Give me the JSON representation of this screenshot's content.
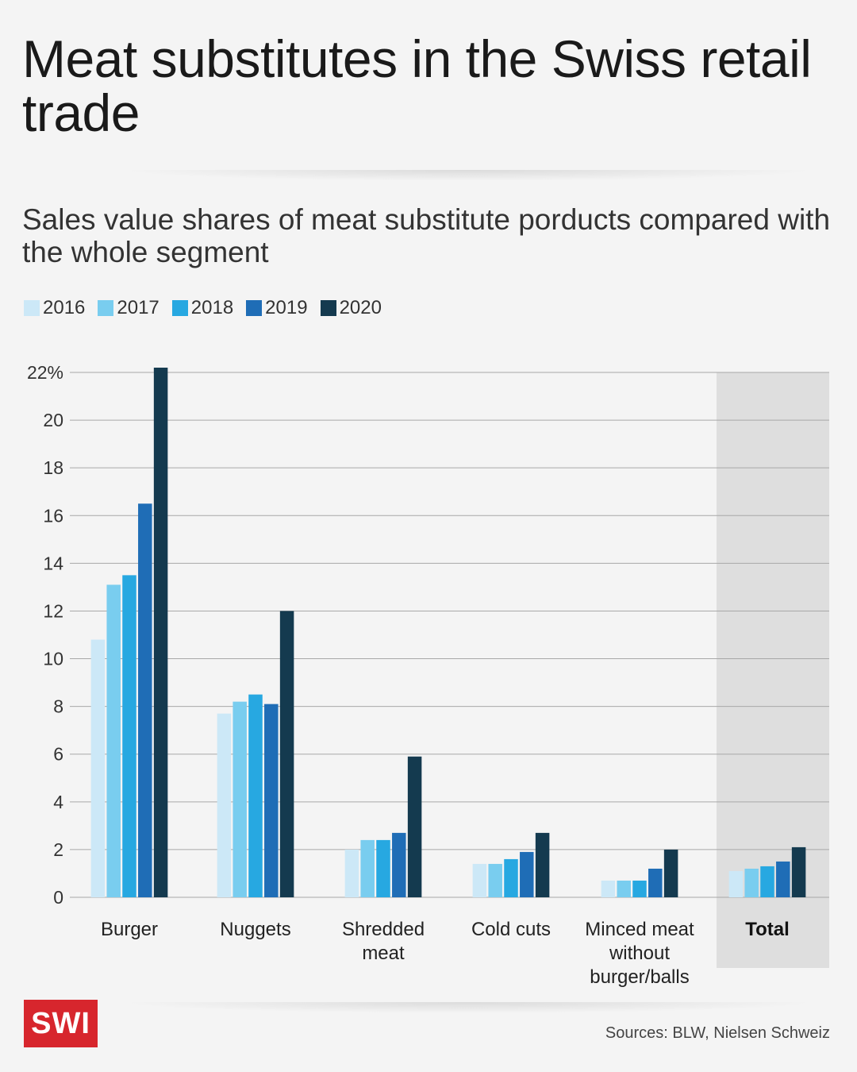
{
  "header": {
    "title": "Meat substitutes in the Swiss retail trade",
    "subtitle": "Sales value shares of meat substitute porducts compared with the whole segment"
  },
  "footer": {
    "logo_text": "SWI",
    "source": "Sources: BLW, Nielsen Schweiz"
  },
  "colors": {
    "2016": "#cce8f7",
    "2017": "#79cdef",
    "2018": "#27a8e1",
    "2019": "#1f6db6",
    "2020": "#143a4f",
    "highlight_band": "#dedede",
    "grid": "#a8a8a8"
  },
  "chart_data": {
    "type": "bar",
    "title": "Sales value shares of meat substitute porducts compared with the whole segment",
    "xlabel": "",
    "ylabel": "",
    "ylim": [
      0,
      22
    ],
    "yticks": [
      0,
      2,
      4,
      6,
      8,
      10,
      12,
      14,
      16,
      18,
      20,
      22
    ],
    "ytick_labels": [
      "0",
      "2",
      "4",
      "6",
      "8",
      "10",
      "12",
      "14",
      "16",
      "18",
      "20",
      "22%"
    ],
    "grid": true,
    "legend_position": "top-left",
    "highlighted_category": "Total",
    "categories": [
      [
        "Burger"
      ],
      [
        "Nuggets"
      ],
      [
        "Shredded",
        "meat"
      ],
      [
        "Cold cuts"
      ],
      [
        "Minced meat",
        "without",
        "burger/balls"
      ],
      [
        "Total"
      ]
    ],
    "series": [
      {
        "name": "2016",
        "values": [
          10.8,
          7.7,
          2.0,
          1.4,
          0.7,
          1.1
        ]
      },
      {
        "name": "2017",
        "values": [
          13.1,
          8.2,
          2.4,
          1.4,
          0.7,
          1.2
        ]
      },
      {
        "name": "2018",
        "values": [
          13.5,
          8.5,
          2.4,
          1.6,
          0.7,
          1.3
        ]
      },
      {
        "name": "2019",
        "values": [
          16.5,
          8.1,
          2.7,
          1.9,
          1.2,
          1.5
        ]
      },
      {
        "name": "2020",
        "values": [
          22.2,
          12.0,
          5.9,
          2.7,
          2.0,
          2.1
        ]
      }
    ]
  }
}
